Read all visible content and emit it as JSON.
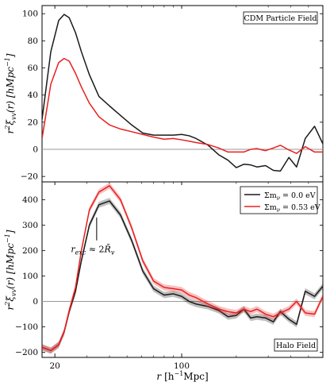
{
  "chart_data": [
    {
      "type": "line",
      "panel": "top",
      "box_label": "CDM Particle Field",
      "ylabel": "r^2ξvv(r) [hMpc^-1]",
      "xscale": "log",
      "xlim": [
        17,
        600
      ],
      "ylim": [
        -24,
        106
      ],
      "yticks": [
        -20,
        0,
        20,
        40,
        60,
        80,
        100
      ],
      "hline": 0,
      "series": [
        {
          "color": "#1a1a1a",
          "x": [
            17,
            19,
            21,
            22.5,
            24,
            26,
            28,
            31,
            35,
            40,
            46,
            53,
            61,
            70,
            80,
            90,
            100,
            110,
            120,
            140,
            160,
            180,
            200,
            220,
            240,
            260,
            290,
            320,
            350,
            390,
            430,
            480,
            540,
            600
          ],
          "y": [
            22,
            72,
            95,
            99.5,
            97,
            86,
            72,
            55,
            39,
            32,
            25,
            18,
            12,
            10.5,
            10.5,
            10.5,
            11,
            10,
            8,
            3,
            -4,
            -8,
            -13.5,
            -11,
            -11.5,
            -13,
            -12,
            -15.5,
            -16,
            -6,
            -13,
            8,
            17,
            4
          ]
        },
        {
          "color": "#e8201f",
          "x": [
            17,
            19,
            21,
            22.5,
            24,
            26,
            28,
            31,
            35,
            40,
            46,
            53,
            61,
            70,
            80,
            90,
            100,
            110,
            120,
            140,
            160,
            180,
            200,
            220,
            240,
            260,
            290,
            320,
            350,
            390,
            430,
            480,
            540,
            600
          ],
          "y": [
            8,
            48,
            64,
            67,
            65,
            56,
            46,
            34,
            24,
            18,
            15,
            13,
            11,
            9,
            7.5,
            8,
            7,
            6,
            5,
            3.5,
            1,
            -2,
            -2,
            -2,
            0,
            0.5,
            -1,
            1,
            3,
            -0.5,
            -3,
            2,
            -2,
            -2
          ]
        }
      ]
    },
    {
      "type": "line",
      "panel": "bottom",
      "box_label": "Halo Field",
      "ylabel": "r^2ξvv(r) [hMpc^-1]",
      "xlabel": "r [h^-1Mpc]",
      "xscale": "log",
      "xlim": [
        17,
        600
      ],
      "ylim": [
        -220,
        470
      ],
      "yticks": [
        -200,
        -100,
        0,
        100,
        200,
        300,
        400
      ],
      "xticks": [
        20,
        100
      ],
      "hline": 0,
      "legend_position": "top-right",
      "annotation": "r_exc ≈ 2R̄v",
      "annotation_x": 34,
      "series": [
        {
          "name": "Σmν = 0.0 eV",
          "color": "#1a1a1a",
          "band": 12,
          "x": [
            17,
            19,
            21,
            22.5,
            24,
            26,
            28,
            31,
            35,
            40,
            46,
            53,
            61,
            70,
            80,
            90,
            100,
            110,
            120,
            140,
            160,
            180,
            200,
            220,
            240,
            260,
            290,
            320,
            350,
            390,
            430,
            480,
            540,
            600
          ],
          "y": [
            -180,
            -193,
            -170,
            -120,
            -40,
            40,
            160,
            300,
            380,
            395,
            340,
            240,
            120,
            50,
            25,
            30,
            20,
            0,
            -10,
            -20,
            -35,
            -60,
            -55,
            -30,
            -65,
            -60,
            -65,
            -80,
            -40,
            -70,
            -90,
            40,
            20,
            60
          ]
        },
        {
          "name": "Σmν = 0.53 eV",
          "color": "#e8201f",
          "band": 12,
          "x": [
            17,
            19,
            21,
            22.5,
            24,
            26,
            28,
            31,
            35,
            40,
            46,
            53,
            61,
            70,
            80,
            90,
            100,
            110,
            120,
            140,
            160,
            180,
            200,
            220,
            240,
            260,
            290,
            320,
            350,
            390,
            430,
            480,
            540,
            600
          ],
          "y": [
            -180,
            -193,
            -170,
            -120,
            -35,
            55,
            200,
            360,
            430,
            455,
            400,
            290,
            160,
            80,
            55,
            50,
            45,
            25,
            15,
            -10,
            -30,
            -40,
            -45,
            -30,
            -40,
            -30,
            -50,
            -60,
            -45,
            -30,
            0,
            -45,
            -50,
            20
          ]
        }
      ]
    }
  ],
  "labels": {
    "xlabel_main": "r",
    "xlabel_unit": "[h",
    "xlabel_exp": "−1",
    "xlabel_tail": "Mpc]",
    "ylabel_prefix": "r",
    "ylabel_sq": "2",
    "ylabel_xi": "ξ",
    "ylabel_sub": "vv",
    "ylabel_arg": "(r) [hMpc",
    "ylabel_exp": "−1",
    "ylabel_close": "]",
    "legend_0": "Σm",
    "legend_0_sub": "ν",
    "legend_0_val": " = 0.0 eV",
    "legend_1": "Σm",
    "legend_1_sub": "ν",
    "legend_1_val": " = 0.53 eV",
    "annot_r": "r",
    "annot_sub": "exc",
    "annot_mid": " ≈ 2",
    "annot_R": "R̄",
    "annot_Rsub": "v"
  }
}
